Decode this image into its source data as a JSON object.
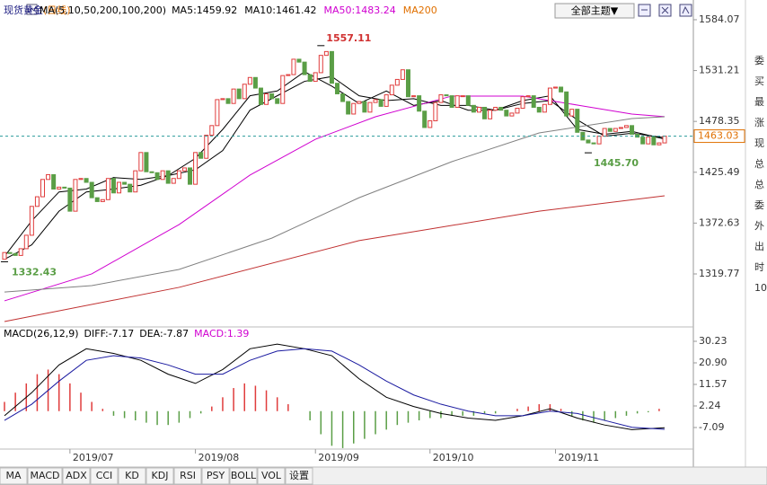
{
  "header": {
    "title": "现货黄金",
    "period": "(日线)",
    "ma_params": "MA(5,10,50,200,100,200)",
    "legend": [
      {
        "text": "MA5:1459.92",
        "color": "#000000"
      },
      {
        "text": "MA10:1461.42",
        "color": "#000000"
      },
      {
        "text": "MA50:1483.24",
        "color": "#d000d0"
      },
      {
        "text": "MA200",
        "color": "#e07000"
      }
    ],
    "theme_button": "全部主题▼"
  },
  "sidebar": [
    "委",
    "买",
    "最",
    "涨",
    "现",
    "总",
    "总",
    "委",
    "外",
    "出",
    "时",
    "10"
  ],
  "toolbar": [
    "MA",
    "MACD",
    "ADX",
    "CCI",
    "KD",
    "KDJ",
    "RSI",
    "PSY",
    "BOLL",
    "VOL",
    "设置"
  ],
  "chart_data": {
    "type": "candlestick",
    "xlim": [
      -0.82,
      126.27
    ],
    "xticks": [
      {
        "value": 12,
        "label": "2019/07"
      },
      {
        "value": 35,
        "label": "2019/08"
      },
      {
        "value": 57,
        "label": "2019/09"
      },
      {
        "value": 78,
        "label": "2019/10"
      },
      {
        "value": 101,
        "label": "2019/11"
      }
    ],
    "ylim": [
      1268.4,
      1597.1
    ],
    "yticks": [
      1584.07,
      1531.21,
      1478.35,
      1425.49,
      1372.63,
      1319.77
    ],
    "up_color": "#e03c3c",
    "down_color": "#5a9e46",
    "open": [
      1335,
      1342,
      1341,
      1339,
      1346,
      1360,
      1390,
      1400,
      1418,
      1423,
      1408,
      1410,
      1409,
      1385,
      1418,
      1419,
      1415,
      1399,
      1395,
      1397,
      1419,
      1404,
      1415,
      1413,
      1405,
      1427,
      1446,
      1426,
      1425,
      1418,
      1427,
      1414,
      1419,
      1427,
      1430,
      1413,
      1446,
      1440,
      1464,
      1474,
      1501,
      1502,
      1497,
      1512,
      1502,
      1517,
      1524,
      1513,
      1496,
      1507,
      1502,
      1497,
      1526,
      1527,
      1543,
      1540,
      1527,
      1520,
      1529,
      1547,
      1551,
      1518,
      1507,
      1499,
      1486,
      1497,
      1499,
      1488,
      1498,
      1501,
      1494,
      1506,
      1516,
      1522,
      1532,
      1504,
      1505,
      1489,
      1472,
      1479,
      1498,
      1506,
      1505,
      1493,
      1505,
      1505,
      1495,
      1488,
      1493,
      1481,
      1490,
      1493,
      1490,
      1484,
      1487,
      1492,
      1504,
      1505,
      1493,
      1488,
      1496,
      1513,
      1514,
      1509,
      1484,
      1491,
      1467,
      1459,
      1456,
      1455,
      1463,
      1471,
      1468,
      1471,
      1472,
      1474,
      1465,
      1462,
      1455,
      1462,
      1454,
      1456
    ],
    "close": [
      1342,
      1341,
      1339,
      1346,
      1360,
      1390,
      1400,
      1418,
      1423,
      1408,
      1410,
      1409,
      1385,
      1418,
      1419,
      1415,
      1399,
      1395,
      1397,
      1419,
      1404,
      1415,
      1413,
      1405,
      1427,
      1446,
      1426,
      1425,
      1418,
      1427,
      1414,
      1419,
      1427,
      1430,
      1413,
      1446,
      1440,
      1464,
      1474,
      1501,
      1502,
      1497,
      1512,
      1502,
      1517,
      1524,
      1513,
      1496,
      1507,
      1502,
      1497,
      1526,
      1527,
      1543,
      1540,
      1527,
      1520,
      1529,
      1547,
      1551,
      1518,
      1507,
      1499,
      1486,
      1497,
      1499,
      1488,
      1498,
      1501,
      1494,
      1506,
      1516,
      1522,
      1532,
      1504,
      1505,
      1489,
      1472,
      1479,
      1498,
      1506,
      1505,
      1493,
      1505,
      1505,
      1495,
      1488,
      1493,
      1481,
      1490,
      1493,
      1490,
      1484,
      1487,
      1492,
      1504,
      1505,
      1493,
      1488,
      1496,
      1513,
      1514,
      1509,
      1484,
      1491,
      1467,
      1459,
      1456,
      1455,
      1463,
      1471,
      1468,
      1471,
      1472,
      1474,
      1465,
      1462,
      1455,
      1462,
      1454,
      1456,
      1463.03
    ],
    "ma_lines": [
      {
        "color": "#000000",
        "x": [
          0,
          5,
          10,
          15,
          20,
          25,
          30,
          35,
          40,
          45,
          50,
          55,
          60,
          65,
          70,
          75,
          80,
          85,
          90,
          95,
          100,
          105,
          110,
          115,
          121
        ],
        "values": [
          1338,
          1375,
          1405,
          1408,
          1420,
          1418,
          1422,
          1440,
          1470,
          1505,
          1510,
          1530,
          1515,
          1497,
          1510,
          1495,
          1500,
          1490,
          1490,
          1500,
          1505,
          1470,
          1465,
          1468,
          1459.92
        ]
      },
      {
        "color": "#000000",
        "x": [
          0,
          5,
          10,
          15,
          20,
          25,
          30,
          35,
          40,
          45,
          50,
          55,
          60,
          65,
          70,
          75,
          80,
          85,
          90,
          95,
          100,
          105,
          110,
          115,
          121
        ],
        "values": [
          1335,
          1350,
          1385,
          1405,
          1408,
          1412,
          1422,
          1428,
          1448,
          1490,
          1505,
          1520,
          1525,
          1505,
          1500,
          1502,
          1495,
          1495,
          1490,
          1497,
          1500,
          1480,
          1463,
          1466,
          1461.42
        ]
      },
      {
        "color": "#d000d0",
        "x": [
          0,
          16,
          32,
          45,
          57,
          68,
          82,
          95,
          106,
          115,
          121
        ],
        "values": [
          1291.8,
          1319.8,
          1371.1,
          1422.5,
          1459.8,
          1483.2,
          1504.7,
          1504.7,
          1494.4,
          1486,
          1483.24
        ]
      },
      {
        "color": "#808080",
        "x": [
          0,
          16,
          32,
          49,
          65,
          82,
          98,
          115,
          121
        ],
        "values": [
          1301,
          1307.6,
          1324.4,
          1357,
          1399,
          1436.5,
          1466.4,
          1481.3,
          1483.2
        ]
      },
      {
        "color": "#c03030",
        "x": [
          0,
          32,
          65,
          98,
          121
        ],
        "values": [
          1270.3,
          1305.8,
          1354.4,
          1385,
          1401
        ]
      }
    ],
    "last_price": 1463.03,
    "annotations": [
      {
        "x": 58,
        "value": 1557.11,
        "color": "#d03030"
      },
      {
        "x": 0,
        "value": 1332.43,
        "color": "#5a9e46"
      },
      {
        "x": 107,
        "value": {
          "value": 1445.7,
          "label": "1445.70"
        },
        "color": "#5a9e46"
      }
    ],
    "macd": {
      "title": "MACD(26,12,9)",
      "diff_label": "DIFF:-7.17",
      "dea_label": "DEA:-7.87",
      "macd_label": "MACD:1.39",
      "ylim": [
        -16.42,
        35.67
      ],
      "yticks": [
        30.23,
        {
          "value": 20.9,
          "label": "20.90"
        },
        11.57,
        2.24,
        -7.09
      ],
      "diff": {
        "color": "#000000",
        "x": [
          0,
          5,
          10,
          15,
          20,
          25,
          30,
          35,
          40,
          45,
          50,
          55,
          60,
          65,
          70,
          75,
          80,
          85,
          90,
          95,
          100,
          105,
          110,
          115,
          121
        ],
        "values": [
          -2,
          8,
          20,
          27,
          25,
          22,
          16,
          12,
          18,
          27,
          29,
          27,
          24,
          14,
          6,
          2,
          -1,
          -3,
          -4,
          -2,
          1,
          -3,
          -6,
          -8,
          -7.17
        ]
      },
      "dea": {
        "color": "#1a1aa0",
        "x": [
          0,
          5,
          10,
          15,
          20,
          25,
          30,
          35,
          40,
          45,
          50,
          55,
          60,
          65,
          70,
          75,
          80,
          85,
          90,
          95,
          100,
          105,
          110,
          115,
          121
        ],
        "values": [
          -4,
          3,
          13,
          22,
          24,
          23,
          20,
          16,
          16,
          22,
          26,
          27,
          26,
          20,
          13,
          7,
          3,
          0,
          -2,
          -2,
          0,
          -1,
          -4,
          -7,
          -7.87
        ]
      },
      "hist": {
        "x": [
          0,
          2,
          4,
          6,
          8,
          10,
          12,
          14,
          16,
          18,
          20,
          22,
          24,
          26,
          28,
          30,
          32,
          34,
          36,
          38,
          40,
          42,
          44,
          46,
          48,
          50,
          52,
          54,
          56,
          58,
          60,
          62,
          64,
          66,
          68,
          70,
          72,
          74,
          76,
          78,
          80,
          82,
          84,
          86,
          88,
          90,
          92,
          94,
          96,
          98,
          100,
          102,
          104,
          106,
          108,
          110,
          112,
          114,
          116,
          118,
          120
        ],
        "values": [
          4,
          8,
          12,
          16,
          18,
          16,
          12,
          8,
          4,
          1,
          -2,
          -3,
          -4,
          -5,
          -6,
          -6,
          -5,
          -3,
          -1,
          2,
          6,
          10,
          12,
          11,
          9,
          6,
          3,
          0,
          -4,
          -10,
          -15,
          -16,
          -14,
          -12,
          -10,
          -8,
          -6,
          -5,
          -4,
          -3,
          -3,
          -2,
          -2,
          -2,
          -1,
          -1,
          0,
          1,
          2,
          3,
          3,
          1,
          -2,
          -4,
          -5,
          -4,
          -3,
          -2,
          -1,
          -0.5,
          1
        ]
      }
    }
  }
}
